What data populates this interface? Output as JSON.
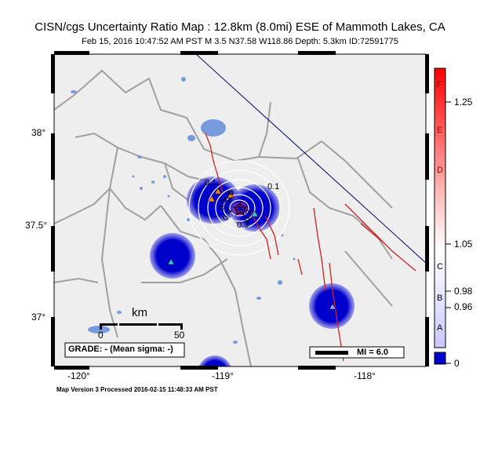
{
  "title": "CISN/cgs Uncertainty Ratio Map : 12.8km (8.0mi) ESE of Mammoth Lakes, CA",
  "subtitle": "Feb 15, 2016 10:47:52 AM PST    M 3.5    N37.58 W118.86    Depth: 5.3km    ID:72591775",
  "footer": "Map Version 3 Processed 2016-02-15 11:48:33 AM PST",
  "axes": {
    "lat_ticks": [
      "38°",
      "37.5°",
      "37°"
    ],
    "lon_ticks": [
      "-120°",
      "-119°",
      "-118°"
    ]
  },
  "scale_bar": {
    "unit": "km",
    "start": "0",
    "end": "50"
  },
  "grade_text": "GRADE: - (Mean sigma: -)",
  "mi_legend": "MI = 6.0",
  "contour_labels": [
    "0.1",
    "0.1",
    "0.2",
    "0.3",
    "0.4",
    "0.5",
    "0.6"
  ],
  "colorbar": {
    "letters": [
      "F",
      "E",
      "D",
      "C",
      "B",
      "A"
    ],
    "values": [
      "1.25",
      "1.05",
      "0.98",
      "0.96",
      "0"
    ]
  },
  "colors": {
    "map_bg": "#eeeeee",
    "low_ratio": "#0000cc",
    "water": "#7799dd",
    "fault": "#cc2222",
    "border": "#a0a0a0"
  }
}
